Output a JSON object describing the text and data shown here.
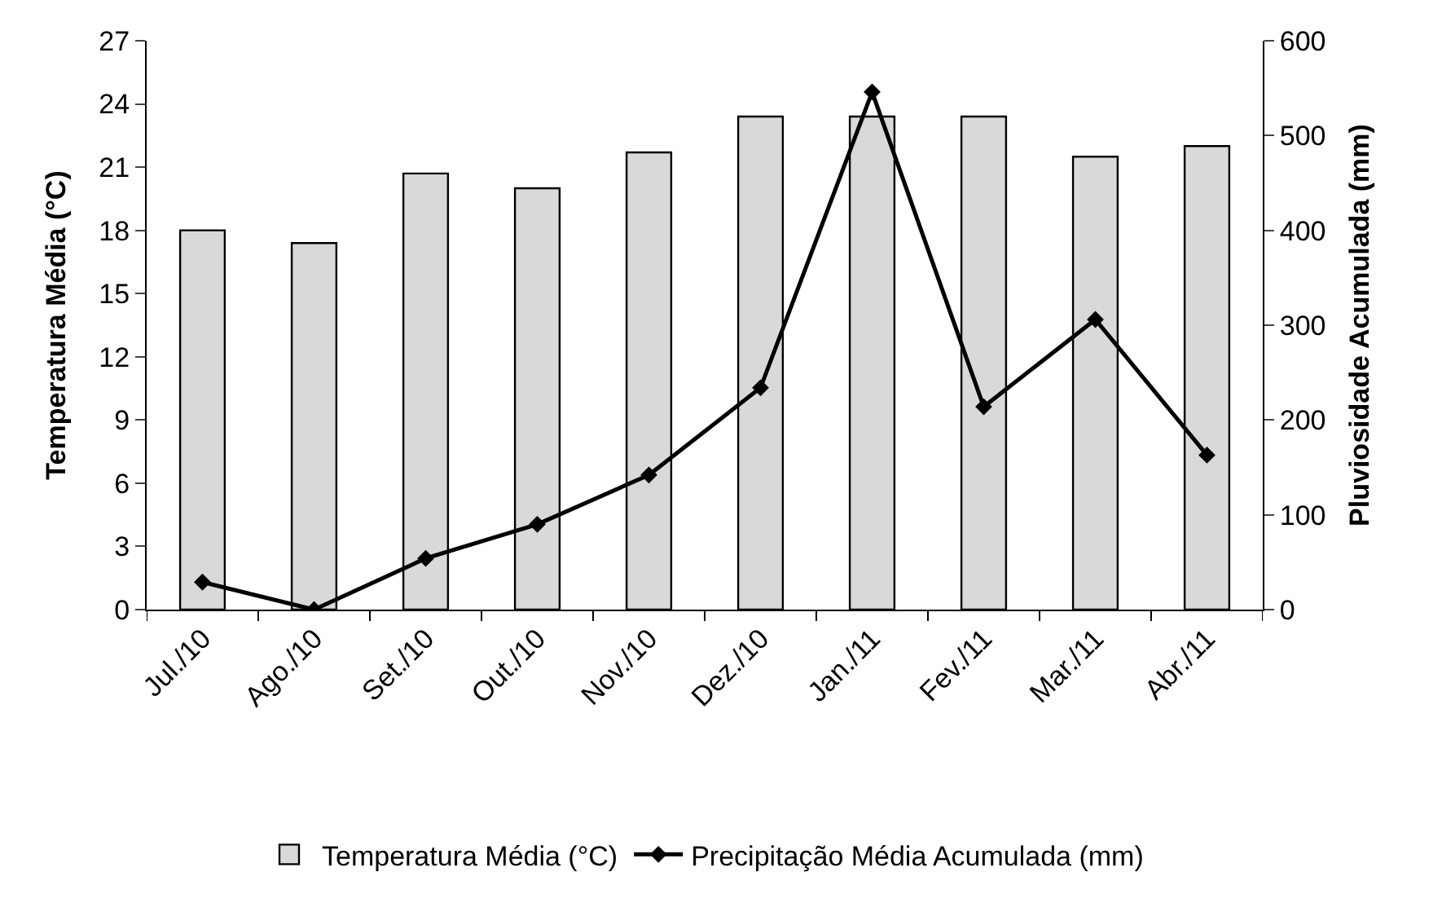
{
  "chart_data": {
    "type": "bar",
    "ylabel": "Temperatura Média (°C)",
    "y2label": "Pluviosidade Acumulada (mm)",
    "categories": [
      "Jul./10",
      "Ago./10",
      "Set./10",
      "Out./10",
      "Nov./10",
      "Dez./10",
      "Jan./11",
      "Fev./11",
      "Mar./11",
      "Abr./11"
    ],
    "series": [
      {
        "name": "Temperatura Média (°C)",
        "color": "#d9d9d9",
        "values": [
          18.0,
          17.4,
          20.7,
          20.0,
          21.7,
          23.4,
          23.4,
          23.4,
          21.5,
          22.0
        ]
      },
      {
        "name": "Precipitação Média Acumulada (mm)",
        "type": "line",
        "axis": "y2",
        "color": "#000000",
        "marker": "diamond",
        "values": [
          29,
          0,
          54,
          90,
          142,
          234,
          546,
          214,
          306,
          163
        ]
      }
    ],
    "ylim": [
      0,
      27
    ],
    "yticks": [
      0,
      3,
      6,
      9,
      12,
      15,
      18,
      21,
      24,
      27
    ],
    "y2lim": [
      0,
      600
    ],
    "y2ticks": [
      0,
      100,
      200,
      300,
      400,
      500,
      600
    ],
    "legend": "bottom"
  }
}
